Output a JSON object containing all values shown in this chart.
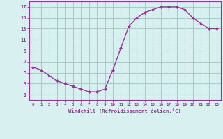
{
  "x": [
    0,
    1,
    2,
    3,
    4,
    5,
    6,
    7,
    8,
    9,
    10,
    11,
    12,
    13,
    14,
    15,
    16,
    17,
    18,
    19,
    20,
    21,
    22,
    23
  ],
  "y": [
    6,
    5.5,
    4.5,
    3.5,
    3,
    2.5,
    2,
    1.5,
    1.5,
    2,
    5.5,
    9.5,
    13.5,
    15,
    16,
    16.5,
    17,
    17,
    17,
    16.5,
    15,
    14,
    13,
    13
  ],
  "line_color": "#993399",
  "marker": "D",
  "marker_size": 2,
  "bg_color": "#d8f0f0",
  "grid_color": "#aacccc",
  "xlabel": "Windchill (Refroidissement éolien,°C)",
  "xlabel_color": "#993399",
  "ylabel_ticks": [
    1,
    3,
    5,
    7,
    9,
    11,
    13,
    15,
    17
  ],
  "xlim": [
    -0.5,
    23.5
  ],
  "ylim": [
    0,
    18
  ],
  "xtick_labels": [
    "0",
    "1",
    "2",
    "3",
    "4",
    "5",
    "6",
    "7",
    "8",
    "9",
    "10",
    "11",
    "12",
    "13",
    "14",
    "15",
    "16",
    "17",
    "18",
    "19",
    "20",
    "21",
    "22",
    "23"
  ],
  "tick_color": "#993399",
  "spine_color": "#993399",
  "linewidth": 1.0
}
